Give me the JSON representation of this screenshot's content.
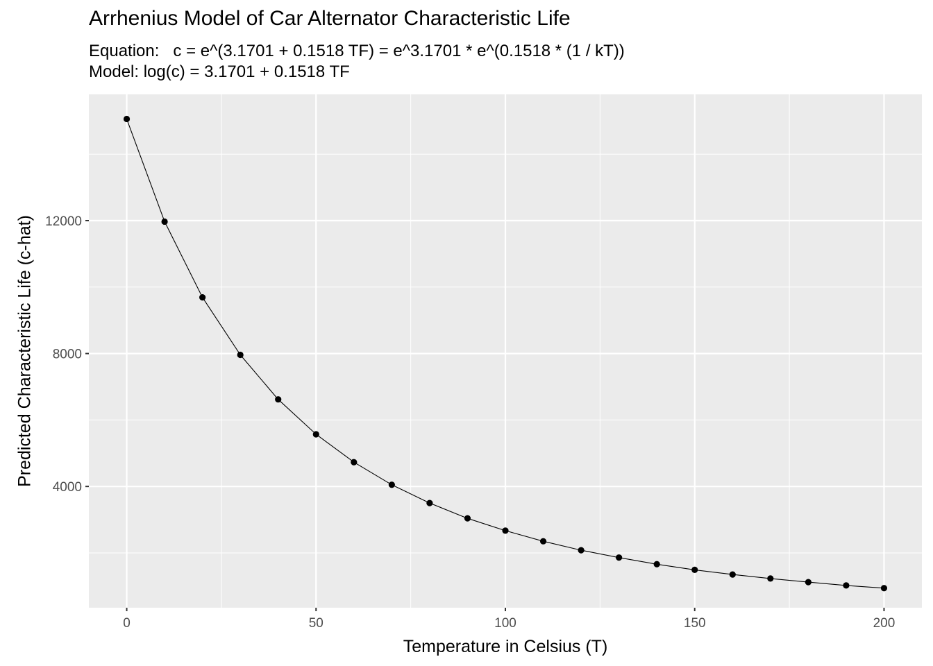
{
  "chart_data": {
    "type": "line",
    "title": "Arrhenius Model of Car Alternator Characteristic Life",
    "subtitle": [
      "Equation:   c = e^(3.1701 + 0.1518 TF) = e^3.1701 * e^(0.1518 * (1 / kT))",
      "Model: log(c) = 3.1701 + 0.1518 TF"
    ],
    "xlabel": "Temperature in Celsius (T)",
    "ylabel": "Predicted Characteristic Life (c-hat)",
    "xlim": [
      -10,
      210
    ],
    "ylim": [
      350,
      15800
    ],
    "x_ticks": [
      0,
      50,
      100,
      150,
      200
    ],
    "y_ticks": [
      4000,
      8000,
      12000
    ],
    "x_tick_labels": [
      "0",
      "50",
      "100",
      "150",
      "200"
    ],
    "y_tick_labels": [
      "4000",
      "8000",
      "12000"
    ],
    "grid": true,
    "panel_background": "#ebebeb",
    "grid_color": "#ffffff",
    "series": [
      {
        "style": "line+points",
        "color": "#000000",
        "x": [
          0,
          10,
          20,
          30,
          40,
          50,
          60,
          70,
          80,
          90,
          100,
          110,
          120,
          130,
          140,
          150,
          160,
          170,
          180,
          190,
          200
        ],
        "y": [
          15060,
          11970,
          9690,
          7960,
          6620,
          5570,
          4730,
          4050,
          3500,
          3040,
          2670,
          2350,
          2080,
          1860,
          1660,
          1490,
          1350,
          1230,
          1120,
          1020,
          940
        ]
      }
    ]
  }
}
